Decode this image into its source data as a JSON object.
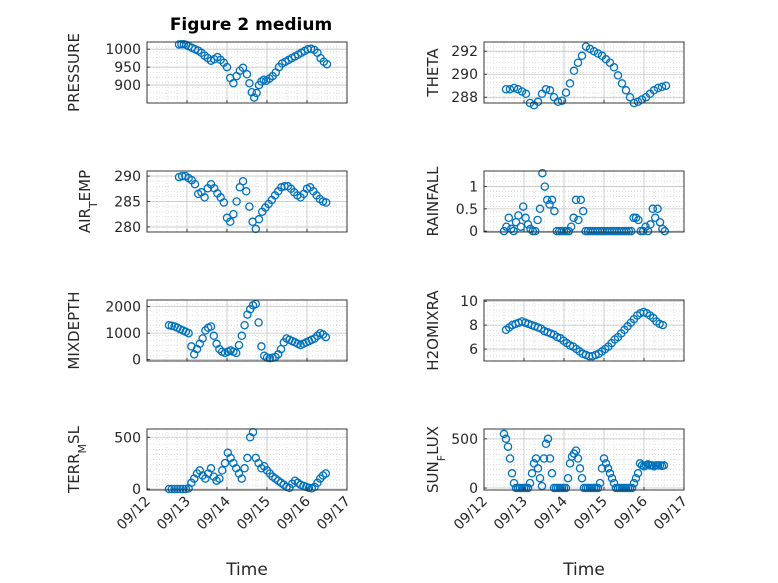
{
  "figure": {
    "title": "Figure 2 medium",
    "marker_color": "#0072BD"
  },
  "chart_data": [
    {
      "type": "scatter",
      "title": "Figure 2 medium",
      "ylabel": "PRESSURE",
      "ylabel_parts": [],
      "xlabel": "",
      "ylim": [
        850,
        1020
      ],
      "yticks": [
        900,
        950,
        1000
      ],
      "xlim": [
        0,
        5
      ],
      "xticks": [
        0,
        1,
        2,
        3,
        4,
        5
      ],
      "xticklabels": [
        "09/12",
        "09/13",
        "09/14",
        "09/15",
        "09/16",
        "09/17"
      ],
      "x": [
        0.8,
        0.86,
        0.92,
        0.98,
        1.04,
        1.12,
        1.2,
        1.28,
        1.36,
        1.44,
        1.52,
        1.6,
        1.68,
        1.76,
        1.84,
        1.92,
        2.0,
        2.08,
        2.16,
        2.24,
        2.32,
        2.4,
        2.5,
        2.56,
        2.62,
        2.68,
        2.74,
        2.8,
        2.86,
        2.92,
        2.98,
        3.06,
        3.14,
        3.22,
        3.3,
        3.38,
        3.46,
        3.54,
        3.62,
        3.7,
        3.78,
        3.86,
        3.94,
        4.02,
        4.1,
        4.18,
        4.26,
        4.34,
        4.42,
        4.5
      ],
      "values": [
        1013,
        1014,
        1014,
        1012,
        1008,
        1004,
        1000,
        996,
        990,
        982,
        975,
        968,
        972,
        978,
        970,
        962,
        950,
        920,
        905,
        925,
        940,
        948,
        930,
        905,
        880,
        865,
        878,
        900,
        910,
        915,
        912,
        918,
        925,
        935,
        950,
        960,
        965,
        970,
        975,
        980,
        985,
        990,
        995,
        1000,
        1001,
        998,
        990,
        975,
        965,
        958
      ]
    },
    {
      "type": "scatter",
      "title": "",
      "ylabel": "THETA",
      "ylabel_parts": [],
      "xlabel": "",
      "ylim": [
        287.5,
        292.8
      ],
      "yticks": [
        288,
        290,
        292
      ],
      "xlim": [
        0,
        5
      ],
      "xticks": [
        0,
        1,
        2,
        3,
        4,
        5
      ],
      "xticklabels": [
        "09/12",
        "09/13",
        "09/14",
        "09/15",
        "09/16",
        "09/17"
      ],
      "x": [
        0.55,
        0.65,
        0.75,
        0.85,
        0.95,
        1.05,
        1.15,
        1.25,
        1.35,
        1.45,
        1.55,
        1.65,
        1.75,
        1.85,
        1.95,
        2.05,
        2.15,
        2.25,
        2.35,
        2.45,
        2.55,
        2.65,
        2.75,
        2.85,
        2.95,
        3.05,
        3.15,
        3.25,
        3.35,
        3.45,
        3.55,
        3.65,
        3.75,
        3.85,
        3.95,
        4.05,
        4.15,
        4.25,
        4.35,
        4.45,
        4.55
      ],
      "values": [
        288.7,
        288.7,
        288.8,
        288.7,
        288.5,
        288.3,
        287.5,
        287.3,
        287.6,
        288.3,
        288.7,
        288.6,
        288.0,
        287.6,
        287.7,
        288.4,
        289.2,
        290.3,
        291.0,
        291.6,
        292.4,
        292.2,
        292.0,
        291.8,
        291.6,
        291.3,
        291.0,
        290.6,
        289.9,
        289.2,
        288.6,
        288.0,
        287.5,
        287.6,
        287.8,
        288.0,
        288.3,
        288.6,
        288.8,
        288.9,
        289.0
      ]
    },
    {
      "type": "scatter",
      "title": "",
      "ylabel": "AIR_TEMP",
      "ylabel_parts": [
        "AIR",
        "T",
        "EMP"
      ],
      "xlabel": "",
      "ylim": [
        279,
        291
      ],
      "yticks": [
        280,
        285,
        290
      ],
      "xlim": [
        0,
        5
      ],
      "xticks": [
        0,
        1,
        2,
        3,
        4,
        5
      ],
      "xticklabels": [
        "09/12",
        "09/13",
        "09/14",
        "09/15",
        "09/16",
        "09/17"
      ],
      "x": [
        0.8,
        0.88,
        0.96,
        1.04,
        1.12,
        1.2,
        1.28,
        1.36,
        1.44,
        1.52,
        1.6,
        1.68,
        1.76,
        1.84,
        1.92,
        2.0,
        2.08,
        2.16,
        2.24,
        2.32,
        2.4,
        2.48,
        2.56,
        2.64,
        2.72,
        2.8,
        2.88,
        2.96,
        3.04,
        3.12,
        3.2,
        3.28,
        3.36,
        3.44,
        3.52,
        3.6,
        3.68,
        3.76,
        3.84,
        3.92,
        4.0,
        4.08,
        4.16,
        4.24,
        4.32,
        4.4,
        4.48
      ],
      "values": [
        289.8,
        290.0,
        290.0,
        289.6,
        289.2,
        288.4,
        286.5,
        286.8,
        285.8,
        287.6,
        288.4,
        287.6,
        286.6,
        285.8,
        284.8,
        281.8,
        281.0,
        282.5,
        285.0,
        287.8,
        289.0,
        287.0,
        284.0,
        281.0,
        279.6,
        281.5,
        283.0,
        283.8,
        284.5,
        285.3,
        286.2,
        287.0,
        287.8,
        288.0,
        288.0,
        287.5,
        286.8,
        286.2,
        285.8,
        286.5,
        287.5,
        287.8,
        287.0,
        286.2,
        285.5,
        285.0,
        284.8
      ]
    },
    {
      "type": "scatter",
      "title": "",
      "ylabel": "RAINFALL",
      "ylabel_parts": [],
      "xlabel": "",
      "ylim": [
        -0.02,
        1.35
      ],
      "yticks": [
        0,
        0.5,
        1
      ],
      "yticklabels": [
        "0",
        "0.5",
        "1"
      ],
      "xlim": [
        0,
        5
      ],
      "xticks": [
        0,
        1,
        2,
        3,
        4,
        5
      ],
      "xticklabels": [
        "09/12",
        "09/13",
        "09/14",
        "09/15",
        "09/16",
        "09/17"
      ],
      "x": [
        0.5,
        0.56,
        0.62,
        0.68,
        0.74,
        0.8,
        0.86,
        0.92,
        0.98,
        1.04,
        1.1,
        1.16,
        1.22,
        1.28,
        1.34,
        1.4,
        1.46,
        1.52,
        1.58,
        1.64,
        1.7,
        1.76,
        1.82,
        1.88,
        1.94,
        2.0,
        2.06,
        2.12,
        2.18,
        2.24,
        2.3,
        2.36,
        2.42,
        2.48,
        2.54,
        2.6,
        2.66,
        2.72,
        2.78,
        2.84,
        2.9,
        2.96,
        3.02,
        3.08,
        3.14,
        3.2,
        3.26,
        3.32,
        3.38,
        3.44,
        3.5,
        3.56,
        3.62,
        3.68,
        3.74,
        3.8,
        3.86,
        3.92,
        3.98,
        4.04,
        4.1,
        4.16,
        4.22,
        4.28,
        4.34,
        4.4,
        4.46,
        4.52
      ],
      "values": [
        0.0,
        0.1,
        0.3,
        0.05,
        0.0,
        0.2,
        0.35,
        0.1,
        0.55,
        0.3,
        0.15,
        0.05,
        0.0,
        0.0,
        0.25,
        0.5,
        1.3,
        1.0,
        0.7,
        0.6,
        0.7,
        0.45,
        0.0,
        0.0,
        0.0,
        0.0,
        0.0,
        0.0,
        0.1,
        0.3,
        0.7,
        0.25,
        0.7,
        0.45,
        0.0,
        0.0,
        0.0,
        0.0,
        0.0,
        0.0,
        0.0,
        0.0,
        0.0,
        0.0,
        0.0,
        0.0,
        0.0,
        0.0,
        0.0,
        0.0,
        0.0,
        0.0,
        0.0,
        0.0,
        0.3,
        0.3,
        0.25,
        0.0,
        0.0,
        0.1,
        0.0,
        0.15,
        0.5,
        0.3,
        0.5,
        0.2,
        0.05,
        0.0
      ]
    },
    {
      "type": "scatter",
      "title": "",
      "ylabel": "MIXDEPTH",
      "ylabel_parts": [],
      "xlabel": "",
      "ylim": [
        -50,
        2250
      ],
      "yticks": [
        0,
        1000,
        2000
      ],
      "xlim": [
        0,
        5
      ],
      "xticks": [
        0,
        1,
        2,
        3,
        4,
        5
      ],
      "xticklabels": [
        "09/12",
        "09/13",
        "09/14",
        "09/15",
        "09/16",
        "09/17"
      ],
      "x": [
        0.55,
        0.62,
        0.69,
        0.76,
        0.83,
        0.9,
        0.97,
        1.04,
        1.11,
        1.18,
        1.25,
        1.32,
        1.39,
        1.46,
        1.53,
        1.6,
        1.67,
        1.74,
        1.81,
        1.88,
        1.95,
        2.02,
        2.09,
        2.16,
        2.23,
        2.3,
        2.37,
        2.44,
        2.51,
        2.58,
        2.65,
        2.72,
        2.79,
        2.86,
        2.93,
        3.0,
        3.07,
        3.14,
        3.21,
        3.28,
        3.35,
        3.42,
        3.49,
        3.56,
        3.63,
        3.7,
        3.77,
        3.84,
        3.91,
        3.98,
        4.05,
        4.12,
        4.19,
        4.26,
        4.33,
        4.4,
        4.47
      ],
      "values": [
        1300,
        1280,
        1250,
        1200,
        1150,
        1100,
        1050,
        1000,
        500,
        200,
        400,
        600,
        800,
        1100,
        1200,
        1250,
        900,
        600,
        400,
        300,
        250,
        300,
        350,
        300,
        250,
        550,
        900,
        1300,
        1700,
        1900,
        2050,
        2100,
        1400,
        500,
        150,
        80,
        60,
        70,
        100,
        200,
        400,
        650,
        800,
        750,
        700,
        650,
        600,
        550,
        600,
        650,
        700,
        750,
        800,
        900,
        1000,
        950,
        850
      ]
    },
    {
      "type": "scatter",
      "title": "",
      "ylabel": "H2OMIXRA",
      "ylabel_parts": [],
      "xlabel": "",
      "ylim": [
        5,
        10.1
      ],
      "yticks": [
        6,
        8,
        10
      ],
      "xlim": [
        0,
        5
      ],
      "xticks": [
        0,
        1,
        2,
        3,
        4,
        5
      ],
      "xticklabels": [
        "09/12",
        "09/13",
        "09/14",
        "09/15",
        "09/16",
        "09/17"
      ],
      "x": [
        0.55,
        0.63,
        0.71,
        0.79,
        0.87,
        0.95,
        1.03,
        1.11,
        1.19,
        1.27,
        1.35,
        1.43,
        1.51,
        1.59,
        1.67,
        1.75,
        1.83,
        1.91,
        1.99,
        2.07,
        2.15,
        2.23,
        2.31,
        2.39,
        2.47,
        2.55,
        2.63,
        2.71,
        2.79,
        2.87,
        2.95,
        3.03,
        3.11,
        3.19,
        3.27,
        3.35,
        3.43,
        3.51,
        3.59,
        3.67,
        3.75,
        3.83,
        3.91,
        3.99,
        4.07,
        4.15,
        4.23,
        4.31,
        4.39,
        4.47
      ],
      "values": [
        7.6,
        7.8,
        8.0,
        8.1,
        8.2,
        8.3,
        8.2,
        8.1,
        8.0,
        7.9,
        7.8,
        7.7,
        7.5,
        7.4,
        7.3,
        7.2,
        7.0,
        6.9,
        6.7,
        6.5,
        6.3,
        6.2,
        6.0,
        5.8,
        5.6,
        5.5,
        5.4,
        5.4,
        5.5,
        5.6,
        5.8,
        6.0,
        6.2,
        6.5,
        6.8,
        7.0,
        7.3,
        7.6,
        7.9,
        8.2,
        8.5,
        8.8,
        9.0,
        9.1,
        9.0,
        8.8,
        8.6,
        8.3,
        8.1,
        8.0
      ]
    },
    {
      "type": "scatter",
      "title": "",
      "ylabel": "TERR_MSL",
      "ylabel_parts": [
        "TERR",
        "M",
        "SL"
      ],
      "xlabel": "Time",
      "ylim": [
        -10,
        580
      ],
      "yticks": [
        0,
        500
      ],
      "xlim": [
        0,
        5
      ],
      "xticks": [
        0,
        1,
        2,
        3,
        4,
        5
      ],
      "xticklabels": [
        "09/12",
        "09/13",
        "09/14",
        "09/15",
        "09/16",
        "09/17"
      ],
      "x": [
        0.55,
        0.62,
        0.69,
        0.76,
        0.83,
        0.9,
        0.97,
        1.04,
        1.11,
        1.18,
        1.25,
        1.32,
        1.39,
        1.46,
        1.53,
        1.6,
        1.67,
        1.74,
        1.81,
        1.88,
        1.95,
        2.02,
        2.09,
        2.16,
        2.23,
        2.3,
        2.37,
        2.44,
        2.51,
        2.58,
        2.65,
        2.72,
        2.79,
        2.86,
        2.93,
        3.0,
        3.07,
        3.14,
        3.21,
        3.28,
        3.35,
        3.42,
        3.49,
        3.56,
        3.63,
        3.7,
        3.77,
        3.84,
        3.91,
        3.98,
        4.05,
        4.12,
        4.19,
        4.26,
        4.33,
        4.4,
        4.47
      ],
      "values": [
        0,
        0,
        0,
        0,
        0,
        0,
        0,
        5,
        60,
        100,
        150,
        180,
        130,
        100,
        150,
        200,
        120,
        80,
        100,
        180,
        250,
        350,
        300,
        250,
        200,
        150,
        100,
        200,
        300,
        500,
        550,
        300,
        250,
        200,
        220,
        180,
        150,
        120,
        100,
        80,
        60,
        40,
        20,
        10,
        50,
        80,
        60,
        40,
        30,
        20,
        10,
        5,
        20,
        60,
        100,
        130,
        150
      ]
    },
    {
      "type": "scatter",
      "title": "",
      "ylabel": "SUN_FLUX",
      "ylabel_parts": [
        "SUN",
        "F",
        "LUX"
      ],
      "xlabel": "Time",
      "ylim": [
        -20,
        600
      ],
      "yticks": [
        0,
        500
      ],
      "xlim": [
        0,
        5
      ],
      "xticks": [
        0,
        1,
        2,
        3,
        4,
        5
      ],
      "xticklabels": [
        "09/12",
        "09/13",
        "09/14",
        "09/15",
        "09/16",
        "09/17"
      ],
      "x": [
        0.5,
        0.55,
        0.6,
        0.65,
        0.7,
        0.75,
        0.8,
        0.85,
        0.9,
        0.95,
        1.0,
        1.05,
        1.1,
        1.15,
        1.2,
        1.25,
        1.3,
        1.35,
        1.4,
        1.45,
        1.5,
        1.55,
        1.6,
        1.65,
        1.7,
        1.75,
        1.8,
        1.85,
        1.9,
        1.95,
        2.0,
        2.05,
        2.1,
        2.15,
        2.2,
        2.25,
        2.3,
        2.35,
        2.4,
        2.45,
        2.5,
        2.55,
        2.6,
        2.65,
        2.7,
        2.75,
        2.8,
        2.85,
        2.9,
        2.95,
        3.0,
        3.05,
        3.1,
        3.15,
        3.2,
        3.25,
        3.3,
        3.35,
        3.4,
        3.45,
        3.5,
        3.55,
        3.6,
        3.65,
        3.7,
        3.75,
        3.8,
        3.85,
        3.9,
        3.95,
        4.0,
        4.05,
        4.1,
        4.15,
        4.2,
        4.25,
        4.3,
        4.35,
        4.4,
        4.45,
        4.5
      ],
      "values": [
        550,
        500,
        420,
        300,
        150,
        50,
        0,
        0,
        0,
        0,
        0,
        0,
        0,
        50,
        150,
        250,
        300,
        200,
        100,
        20,
        300,
        450,
        500,
        300,
        150,
        0,
        0,
        0,
        0,
        0,
        0,
        0,
        100,
        250,
        320,
        350,
        380,
        300,
        200,
        100,
        0,
        0,
        0,
        0,
        0,
        0,
        0,
        0,
        50,
        200,
        300,
        250,
        200,
        150,
        100,
        50,
        0,
        0,
        0,
        0,
        0,
        0,
        0,
        0,
        0,
        50,
        100,
        150,
        250,
        230,
        220,
        230,
        240,
        230,
        230,
        220,
        230,
        230,
        230,
        225,
        230
      ]
    }
  ]
}
